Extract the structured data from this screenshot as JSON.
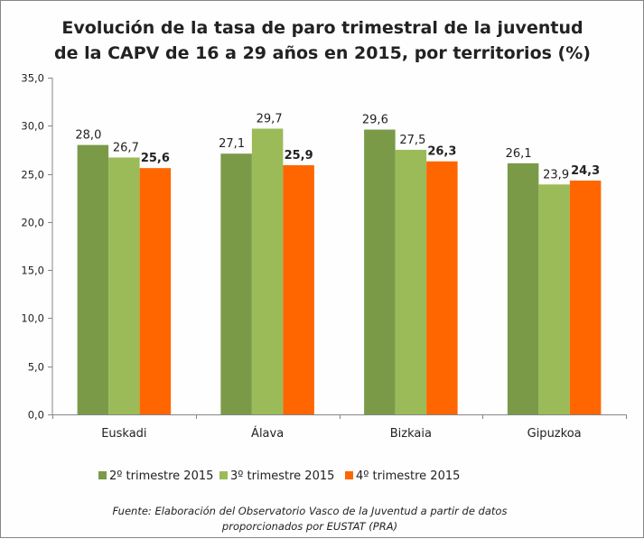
{
  "chart_data": {
    "type": "bar",
    "title_lines": [
      "Evolución de la tasa de paro trimestral de la juventud",
      "de la CAPV de 16 a 29 años en 2015, por territorios (%)"
    ],
    "xlabel": "",
    "ylabel": "",
    "categories": [
      "Euskadi",
      "Álava",
      "Bizkaia",
      "Gipuzkoa"
    ],
    "series": [
      {
        "name": "2º trimestre 2015",
        "color": "#7a9a48",
        "values": [
          28.0,
          27.1,
          29.6,
          26.1
        ],
        "labels": [
          "28,0",
          "27,1",
          "29,6",
          "26,1"
        ],
        "label_bold": false
      },
      {
        "name": "3º trimestre 2015",
        "color": "#9bbb59",
        "values": [
          26.7,
          29.7,
          27.5,
          23.9
        ],
        "labels": [
          "26,7",
          "29,7",
          "27,5",
          "23,9"
        ],
        "label_bold": false
      },
      {
        "name": "4º trimestre 2015",
        "color": "#ff6600",
        "values": [
          25.6,
          25.9,
          26.3,
          24.3
        ],
        "labels": [
          "25,6",
          "25,9",
          "26,3",
          "24,3"
        ],
        "label_bold": true
      }
    ],
    "ylim": [
      0,
      35
    ],
    "yticks": [
      0,
      5,
      10,
      15,
      20,
      25,
      30,
      35
    ],
    "ytick_labels": [
      "0,0",
      "5,0",
      "10,0",
      "15,0",
      "20,0",
      "25,0",
      "30,0",
      "35,0"
    ],
    "grid": false,
    "legend_position": "bottom",
    "source_lines": [
      "Fuente: Elaboración del Observatorio Vasco de la Juventud a partir de  datos",
      "proporcionados por EUSTAT (PRA)"
    ]
  }
}
